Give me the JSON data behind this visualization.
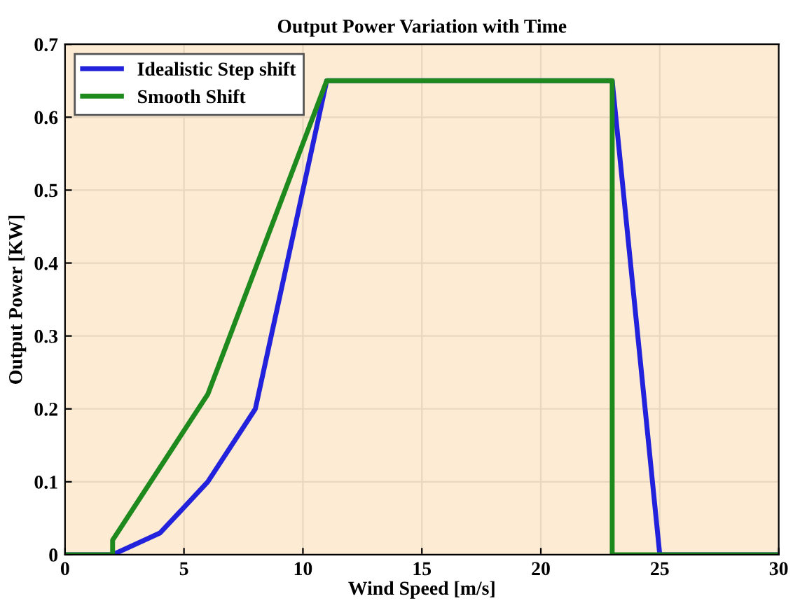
{
  "chart_data": {
    "type": "line",
    "title": "Output Power Variation with Time",
    "xlabel": "Wind Speed [m/s]",
    "ylabel": "Output Power [KW]",
    "xlim": [
      0,
      30
    ],
    "xticks": [
      0,
      5,
      10,
      15,
      20,
      25,
      30
    ],
    "ylim": [
      0,
      0.7
    ],
    "yticks": [
      0,
      0.1,
      0.2,
      0.3,
      0.4,
      0.5,
      0.6,
      0.7
    ],
    "grid": true,
    "legend": "top left",
    "line_style": "solid",
    "series": [
      {
        "name": "Idealistic Step shift",
        "color": "#2222dd",
        "x": [
          0,
          2,
          4,
          6,
          8,
          11,
          23,
          25,
          30
        ],
        "values": [
          0,
          0,
          0.03,
          0.1,
          0.2,
          0.65,
          0.65,
          0,
          0
        ]
      },
      {
        "name": "Smooth Shift",
        "color": "#1e8a1e",
        "x": [
          0,
          2,
          2,
          6,
          11,
          23,
          23,
          30
        ],
        "values": [
          0,
          0,
          0.02,
          0.22,
          0.65,
          0.65,
          0,
          0
        ]
      }
    ]
  }
}
